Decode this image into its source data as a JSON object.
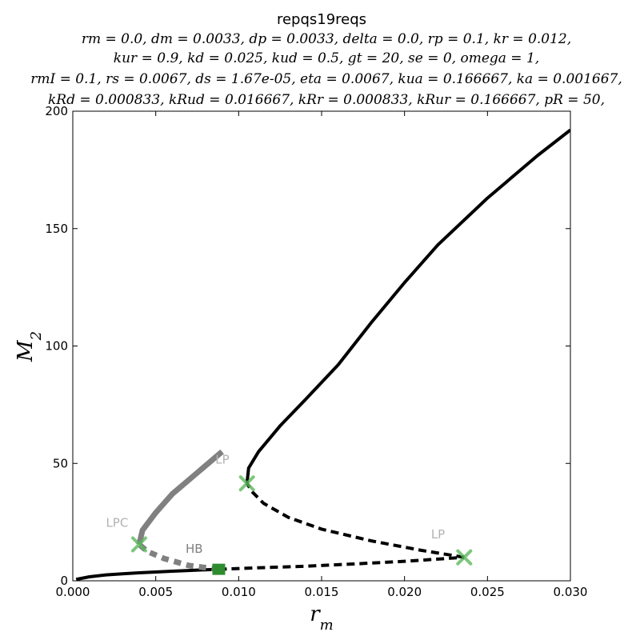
{
  "chart_data": {
    "type": "line",
    "title": "repqs19reqs",
    "parameter_lines": [
      "rm = 0.0,   dm = 0.0033,   dp = 0.0033,   delta = 0.0,   rp = 0.1,   kr = 0.012,",
      "kur = 0.9,   kd = 0.025,   kud = 0.5,   gt = 20,   se = 0,   omega = 1,",
      "rmI = 0.1,   rs = 0.0067,   ds = 1.67e-05,   eta = 0.0067,   kua = 0.166667,   ka = 0.001667,",
      "kRd = 0.000833,   kRud = 0.016667,   kRr = 0.000833,   kRur = 0.166667,   pR = 50,"
    ],
    "xlabel": "r_m",
    "ylabel": "M_2",
    "xlim": [
      0,
      0.03
    ],
    "ylim": [
      0,
      200
    ],
    "xticks": [
      "0.000",
      "0.005",
      "0.010",
      "0.015",
      "0.020",
      "0.025",
      "0.030"
    ],
    "yticks": [
      "0",
      "50",
      "100",
      "150",
      "200"
    ],
    "grid": false,
    "series": [
      {
        "style": "stable",
        "color": "#000000",
        "points": [
          [
            0.0002,
            0.6
          ],
          [
            0.001,
            1.7
          ],
          [
            0.002,
            2.5
          ],
          [
            0.003,
            3.0
          ],
          [
            0.004,
            3.4
          ],
          [
            0.005,
            3.75
          ],
          [
            0.006,
            4.1
          ],
          [
            0.007,
            4.4
          ],
          [
            0.008,
            4.7
          ],
          [
            0.0088,
            4.9
          ]
        ]
      },
      {
        "style": "unstable",
        "color": "#000000",
        "points": [
          [
            0.0088,
            4.9
          ],
          [
            0.011,
            5.5
          ],
          [
            0.014,
            6.2
          ],
          [
            0.017,
            7.2
          ],
          [
            0.02,
            8.3
          ],
          [
            0.0236,
            10.0
          ]
        ]
      },
      {
        "style": "unstable",
        "color": "#000000",
        "points": [
          [
            0.0236,
            10.0
          ],
          [
            0.021,
            13.0
          ],
          [
            0.018,
            17.0
          ],
          [
            0.015,
            22.0
          ],
          [
            0.013,
            27.0
          ],
          [
            0.0115,
            33.0
          ],
          [
            0.0108,
            38.0
          ],
          [
            0.0105,
            41.5
          ]
        ]
      },
      {
        "style": "stable",
        "color": "#000000",
        "points": [
          [
            0.0105,
            41.5
          ],
          [
            0.0106,
            48.0
          ],
          [
            0.0112,
            55.0
          ],
          [
            0.0125,
            66.0
          ],
          [
            0.014,
            77.0
          ],
          [
            0.016,
            92.0
          ],
          [
            0.018,
            110.0
          ],
          [
            0.02,
            127.0
          ],
          [
            0.022,
            143.0
          ],
          [
            0.025,
            163.0
          ],
          [
            0.028,
            181.0
          ],
          [
            0.03,
            192.0
          ]
        ]
      },
      {
        "style": "unstable-periodic",
        "color": "#808080",
        "points": [
          [
            0.0088,
            4.9
          ],
          [
            0.007,
            6.5
          ],
          [
            0.0055,
            9.5
          ],
          [
            0.0045,
            12.5
          ],
          [
            0.004,
            15.5
          ]
        ]
      },
      {
        "style": "stable-periodic",
        "color": "#808080",
        "points": [
          [
            0.004,
            15.5
          ],
          [
            0.0042,
            21.5
          ],
          [
            0.005,
            29.0
          ],
          [
            0.006,
            37.0
          ],
          [
            0.0075,
            46.0
          ],
          [
            0.009,
            55.0
          ]
        ]
      }
    ],
    "markers": [
      {
        "type": "LP",
        "shape": "x",
        "x": 0.0105,
        "y": 41.5
      },
      {
        "type": "LP",
        "shape": "x",
        "x": 0.0236,
        "y": 10.0
      },
      {
        "type": "LPC",
        "shape": "x",
        "x": 0.004,
        "y": 15.5
      },
      {
        "type": "HB",
        "shape": "square",
        "x": 0.0088,
        "y": 4.9
      }
    ],
    "annotations": [
      {
        "text": "LP",
        "x": 0.0086,
        "y": 50,
        "color": "#b3b3b3"
      },
      {
        "text": "LP",
        "x": 0.0216,
        "y": 18,
        "color": "#b3b3b3"
      },
      {
        "text": "LPC",
        "x": 0.002,
        "y": 23,
        "color": "#b3b3b3"
      },
      {
        "text": "HB",
        "x": 0.0068,
        "y": 12,
        "color": "#808080"
      }
    ],
    "marker_color": "#5cb85c",
    "hb_color": "#2e8b2e"
  }
}
